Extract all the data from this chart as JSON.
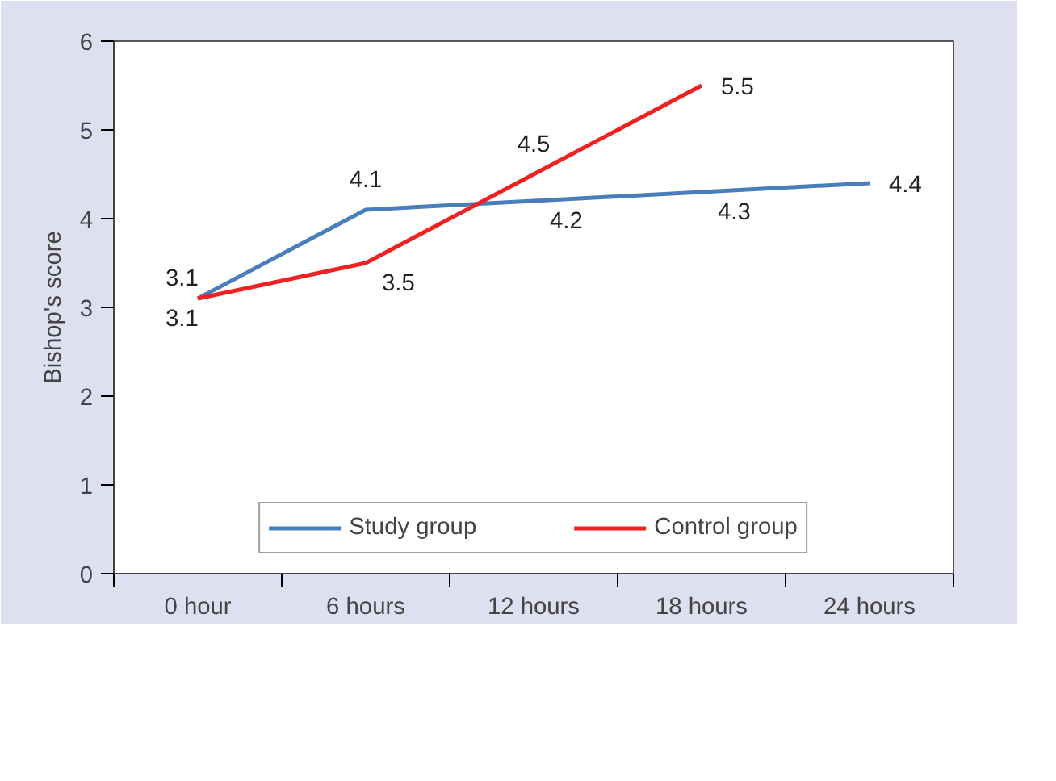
{
  "chart_data": {
    "type": "line",
    "ylabel": "Bishop's score",
    "categories": [
      "0 hour",
      "6 hours",
      "12 hours",
      "18 hours",
      "24 hours"
    ],
    "series": [
      {
        "name": "Study group",
        "color": "#4a7ebb",
        "values": [
          3.1,
          4.1,
          4.2,
          4.3,
          4.4
        ]
      },
      {
        "name": "Control group",
        "color": "#ee2222",
        "values": [
          3.1,
          3.5,
          4.5,
          5.5,
          null
        ]
      }
    ],
    "ylim": [
      0,
      6
    ],
    "yticks": [
      0,
      1,
      2,
      3,
      4,
      5,
      6
    ],
    "grid": false,
    "legend": "bottom",
    "data_labels": true,
    "marker": "none",
    "line_style": "solid"
  }
}
